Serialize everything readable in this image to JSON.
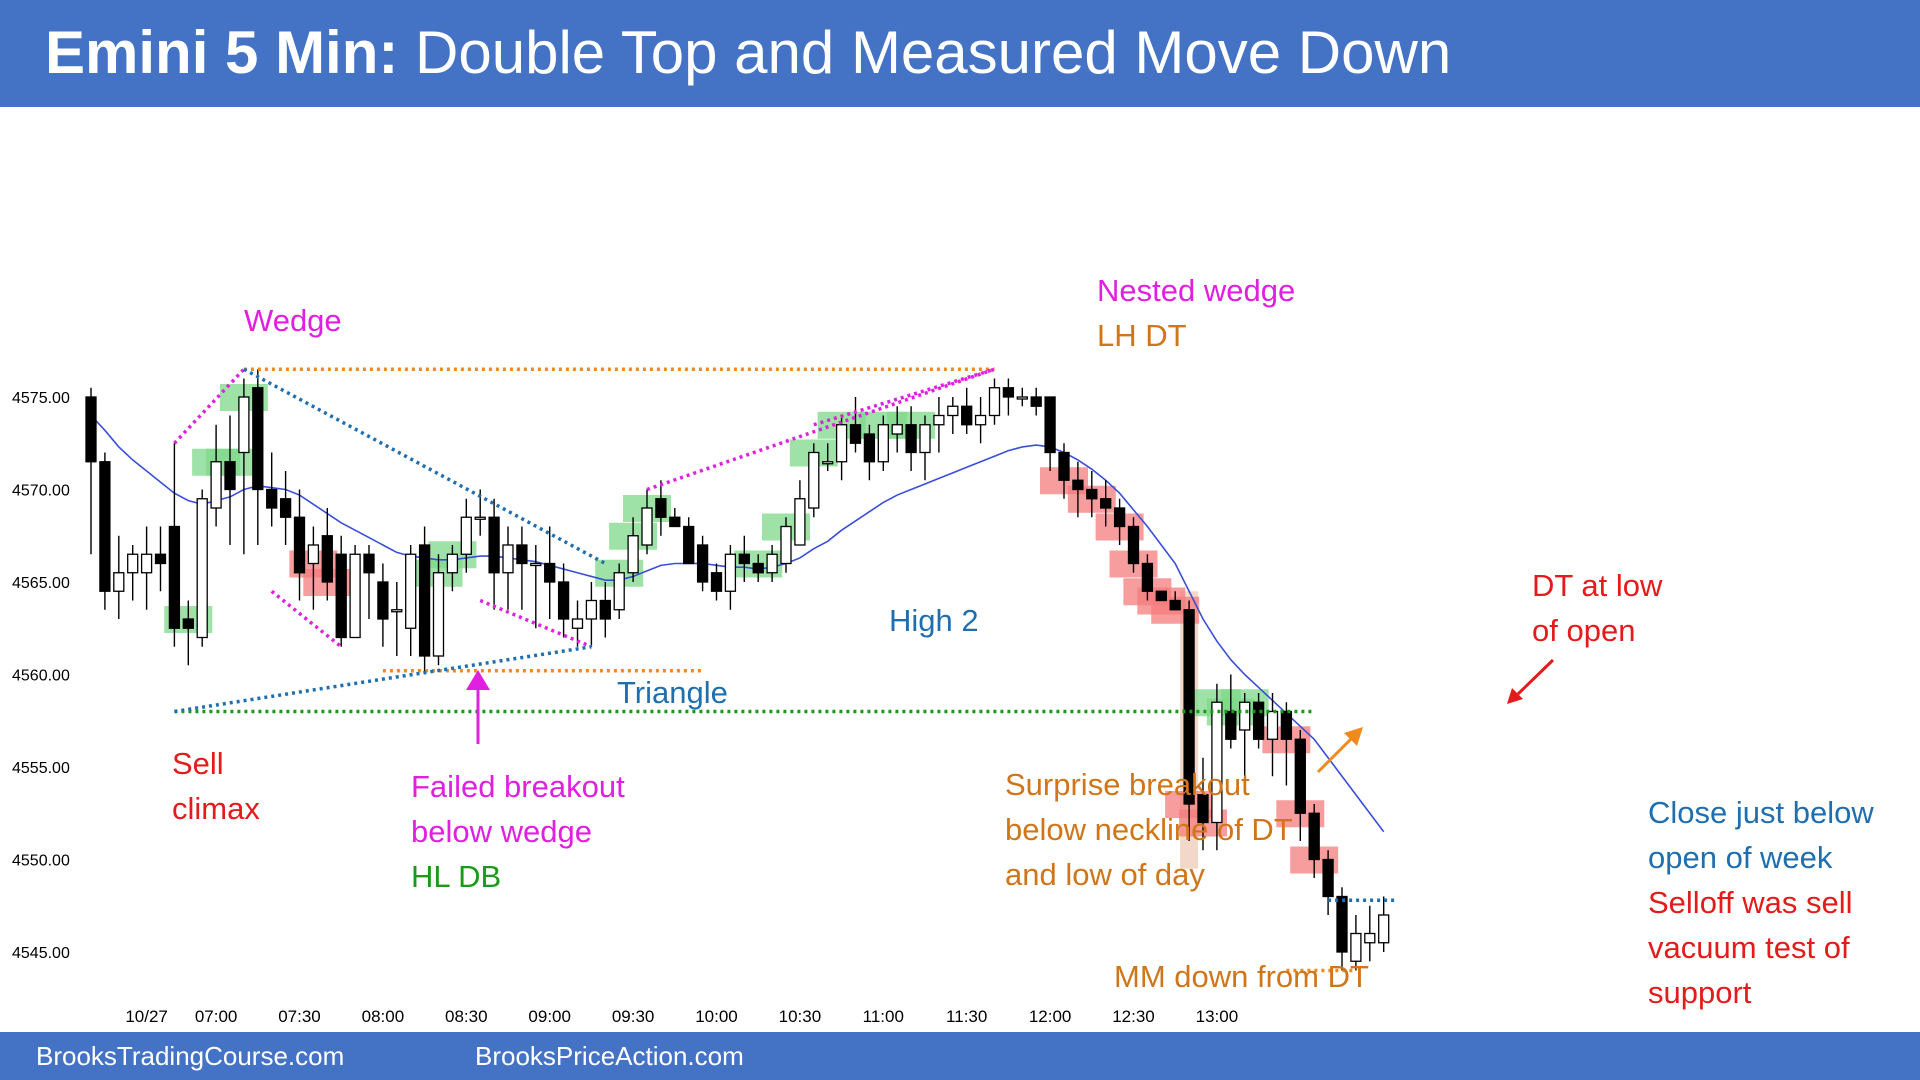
{
  "header": {
    "title_bold": "Emini 5 Min:",
    "title_rest": " Double Top and Measured Move Down",
    "bg_color": "#4472C4"
  },
  "footer": {
    "left": "BrooksTradingCourse.com",
    "right": "BrooksPriceAction.com"
  },
  "colors": {
    "bull_highlight": "#7FD88A",
    "bear_highlight": "#F47C7C",
    "ema": "#3A4FD8",
    "magenta": "#E020E0",
    "orange": "#F08A1E",
    "blue_dot": "#1F6FB0",
    "green_dot": "#1A9A1A"
  },
  "chart_data": {
    "type": "candlestick",
    "title": "Emini 5 Min: Double Top and Measured Move Down",
    "ylim": [
      4542,
      4582
    ],
    "yticks": [
      "4575.00",
      "4570.00",
      "4565.00",
      "4560.00",
      "4555.00",
      "4550.00",
      "4545.00"
    ],
    "ytick_values": [
      4575,
      4570,
      4565,
      4560,
      4555,
      4550,
      4545
    ],
    "xticks": [
      "10/27",
      "07:00",
      "07:30",
      "08:00",
      "08:30",
      "09:00",
      "09:30",
      "10:00",
      "10:30",
      "11:00",
      "11:30",
      "12:00",
      "12:30",
      "13:00"
    ],
    "xtick_bars": [
      4,
      9,
      15,
      21,
      27,
      33,
      39,
      45,
      51,
      57,
      63,
      69,
      75,
      81
    ],
    "bars": [
      {
        "o": 4575.0,
        "h": 4575.5,
        "l": 4566.5,
        "c": 4571.5
      },
      {
        "o": 4571.5,
        "h": 4572.0,
        "l": 4563.5,
        "c": 4564.5
      },
      {
        "o": 4564.5,
        "h": 4567.5,
        "l": 4563.0,
        "c": 4565.5
      },
      {
        "o": 4565.5,
        "h": 4567.0,
        "l": 4564.0,
        "c": 4566.5
      },
      {
        "o": 4565.5,
        "h": 4568.0,
        "l": 4563.5,
        "c": 4566.5
      },
      {
        "o": 4566.5,
        "h": 4568.0,
        "l": 4564.5,
        "c": 4566.0
      },
      {
        "o": 4568.0,
        "h": 4572.5,
        "l": 4561.5,
        "c": 4562.5
      },
      {
        "o": 4563.0,
        "h": 4564.0,
        "l": 4560.5,
        "c": 4562.5
      },
      {
        "o": 4562.0,
        "h": 4570.0,
        "l": 4561.5,
        "c": 4569.5
      },
      {
        "o": 4569.0,
        "h": 4573.5,
        "l": 4568.0,
        "c": 4571.5
      },
      {
        "o": 4571.5,
        "h": 4574.0,
        "l": 4567.0,
        "c": 4570.0
      },
      {
        "o": 4572.0,
        "h": 4576.0,
        "l": 4566.5,
        "c": 4575.0
      },
      {
        "o": 4575.5,
        "h": 4576.5,
        "l": 4567.0,
        "c": 4570.0
      },
      {
        "o": 4570.0,
        "h": 4572.0,
        "l": 4568.0,
        "c": 4569.0
      },
      {
        "o": 4569.5,
        "h": 4571.0,
        "l": 4567.0,
        "c": 4568.5
      },
      {
        "o": 4568.5,
        "h": 4570.0,
        "l": 4564.0,
        "c": 4565.5
      },
      {
        "o": 4566.0,
        "h": 4568.0,
        "l": 4563.5,
        "c": 4567.0
      },
      {
        "o": 4567.5,
        "h": 4569.0,
        "l": 4564.0,
        "c": 4565.0
      },
      {
        "o": 4566.5,
        "h": 4567.5,
        "l": 4561.5,
        "c": 4562.0
      },
      {
        "o": 4562.0,
        "h": 4567.0,
        "l": 4562.0,
        "c": 4566.5
      },
      {
        "o": 4566.5,
        "h": 4567.0,
        "l": 4563.0,
        "c": 4565.5
      },
      {
        "o": 4565.0,
        "h": 4566.0,
        "l": 4561.5,
        "c": 4563.0
      },
      {
        "o": 4563.5,
        "h": 4565.0,
        "l": 4561.0,
        "c": 4563.5
      },
      {
        "o": 4562.5,
        "h": 4567.0,
        "l": 4561.0,
        "c": 4566.5
      },
      {
        "o": 4567.0,
        "h": 4568.0,
        "l": 4560.0,
        "c": 4561.0
      },
      {
        "o": 4561.0,
        "h": 4566.5,
        "l": 4560.5,
        "c": 4565.5
      },
      {
        "o": 4565.5,
        "h": 4567.0,
        "l": 4564.5,
        "c": 4566.5
      },
      {
        "o": 4566.5,
        "h": 4569.5,
        "l": 4565.5,
        "c": 4568.5
      },
      {
        "o": 4568.5,
        "h": 4570.0,
        "l": 4567.5,
        "c": 4568.5
      },
      {
        "o": 4568.5,
        "h": 4569.5,
        "l": 4563.5,
        "c": 4565.5
      },
      {
        "o": 4565.5,
        "h": 4568.0,
        "l": 4563.5,
        "c": 4567.0
      },
      {
        "o": 4567.0,
        "h": 4568.0,
        "l": 4563.5,
        "c": 4566.0
      },
      {
        "o": 4566.0,
        "h": 4567.0,
        "l": 4562.5,
        "c": 4566.0
      },
      {
        "o": 4566.0,
        "h": 4568.0,
        "l": 4563.0,
        "c": 4565.0
      },
      {
        "o": 4565.0,
        "h": 4566.0,
        "l": 4562.0,
        "c": 4563.0
      },
      {
        "o": 4562.5,
        "h": 4564.0,
        "l": 4561.5,
        "c": 4563.0
      },
      {
        "o": 4563.0,
        "h": 4565.0,
        "l": 4561.5,
        "c": 4564.0
      },
      {
        "o": 4564.0,
        "h": 4565.0,
        "l": 4562.0,
        "c": 4563.0
      },
      {
        "o": 4563.5,
        "h": 4566.0,
        "l": 4563.0,
        "c": 4565.5
      },
      {
        "o": 4565.5,
        "h": 4568.5,
        "l": 4565.0,
        "c": 4567.5
      },
      {
        "o": 4567.0,
        "h": 4570.0,
        "l": 4566.5,
        "c": 4569.0
      },
      {
        "o": 4569.5,
        "h": 4570.5,
        "l": 4567.5,
        "c": 4568.5
      },
      {
        "o": 4568.5,
        "h": 4569.0,
        "l": 4568.0,
        "c": 4568.0
      },
      {
        "o": 4568.0,
        "h": 4568.5,
        "l": 4566.0,
        "c": 4566.0
      },
      {
        "o": 4567.0,
        "h": 4567.5,
        "l": 4564.5,
        "c": 4565.0
      },
      {
        "o": 4565.5,
        "h": 4566.0,
        "l": 4564.0,
        "c": 4564.5
      },
      {
        "o": 4564.5,
        "h": 4567.0,
        "l": 4563.5,
        "c": 4566.5
      },
      {
        "o": 4566.5,
        "h": 4567.5,
        "l": 4565.0,
        "c": 4566.0
      },
      {
        "o": 4566.0,
        "h": 4566.5,
        "l": 4565.0,
        "c": 4565.5
      },
      {
        "o": 4565.5,
        "h": 4567.0,
        "l": 4565.0,
        "c": 4566.5
      },
      {
        "o": 4566.0,
        "h": 4568.5,
        "l": 4565.5,
        "c": 4568.0
      },
      {
        "o": 4567.0,
        "h": 4570.5,
        "l": 4567.0,
        "c": 4569.5
      },
      {
        "o": 4569.0,
        "h": 4572.5,
        "l": 4568.5,
        "c": 4572.0
      },
      {
        "o": 4571.5,
        "h": 4572.5,
        "l": 4571.0,
        "c": 4571.5
      },
      {
        "o": 4571.5,
        "h": 4574.0,
        "l": 4570.5,
        "c": 4573.5
      },
      {
        "o": 4573.5,
        "h": 4575.0,
        "l": 4572.0,
        "c": 4572.5
      },
      {
        "o": 4573.0,
        "h": 4573.5,
        "l": 4570.5,
        "c": 4571.5
      },
      {
        "o": 4571.5,
        "h": 4574.0,
        "l": 4571.0,
        "c": 4573.5
      },
      {
        "o": 4573.0,
        "h": 4574.5,
        "l": 4572.0,
        "c": 4573.5
      },
      {
        "o": 4573.5,
        "h": 4574.5,
        "l": 4571.0,
        "c": 4572.0
      },
      {
        "o": 4572.0,
        "h": 4574.0,
        "l": 4570.5,
        "c": 4573.5
      },
      {
        "o": 4573.5,
        "h": 4575.0,
        "l": 4572.0,
        "c": 4574.0
      },
      {
        "o": 4574.0,
        "h": 4575.0,
        "l": 4573.0,
        "c": 4574.5
      },
      {
        "o": 4574.5,
        "h": 4575.5,
        "l": 4573.0,
        "c": 4573.5
      },
      {
        "o": 4573.5,
        "h": 4575.0,
        "l": 4572.5,
        "c": 4574.0
      },
      {
        "o": 4574.0,
        "h": 4576.0,
        "l": 4573.5,
        "c": 4575.5
      },
      {
        "o": 4575.5,
        "h": 4576.0,
        "l": 4574.0,
        "c": 4575.0
      },
      {
        "o": 4575.0,
        "h": 4575.5,
        "l": 4574.5,
        "c": 4575.0
      },
      {
        "o": 4575.0,
        "h": 4575.5,
        "l": 4574.0,
        "c": 4574.5
      },
      {
        "o": 4575.0,
        "h": 4575.0,
        "l": 4571.0,
        "c": 4572.0
      },
      {
        "o": 4572.0,
        "h": 4572.5,
        "l": 4569.5,
        "c": 4570.5
      },
      {
        "o": 4570.5,
        "h": 4571.5,
        "l": 4568.5,
        "c": 4570.0
      },
      {
        "o": 4570.0,
        "h": 4571.0,
        "l": 4568.5,
        "c": 4569.5
      },
      {
        "o": 4569.5,
        "h": 4570.5,
        "l": 4568.0,
        "c": 4569.0
      },
      {
        "o": 4569.0,
        "h": 4569.5,
        "l": 4567.0,
        "c": 4568.0
      },
      {
        "o": 4568.0,
        "h": 4568.5,
        "l": 4565.5,
        "c": 4566.0
      },
      {
        "o": 4566.0,
        "h": 4566.5,
        "l": 4564.0,
        "c": 4564.5
      },
      {
        "o": 4564.5,
        "h": 4564.5,
        "l": 4564.0,
        "c": 4564.0
      },
      {
        "o": 4564.0,
        "h": 4564.5,
        "l": 4563.5,
        "c": 4563.5
      },
      {
        "o": 4563.5,
        "h": 4564.0,
        "l": 4551.0,
        "c": 4553.0
      },
      {
        "o": 4553.5,
        "h": 4555.5,
        "l": 4550.5,
        "c": 4552.0
      },
      {
        "o": 4552.0,
        "h": 4559.5,
        "l": 4550.5,
        "c": 4558.5
      },
      {
        "o": 4558.0,
        "h": 4560.0,
        "l": 4556.0,
        "c": 4556.5
      },
      {
        "o": 4557.0,
        "h": 4559.0,
        "l": 4554.5,
        "c": 4558.5
      },
      {
        "o": 4558.5,
        "h": 4559.0,
        "l": 4556.0,
        "c": 4556.5
      },
      {
        "o": 4556.5,
        "h": 4559.0,
        "l": 4554.5,
        "c": 4558.0
      },
      {
        "o": 4558.0,
        "h": 4558.5,
        "l": 4554.0,
        "c": 4556.5
      },
      {
        "o": 4556.5,
        "h": 4557.0,
        "l": 4551.0,
        "c": 4552.5
      },
      {
        "o": 4552.5,
        "h": 4553.0,
        "l": 4549.0,
        "c": 4550.0
      },
      {
        "o": 4550.0,
        "h": 4550.5,
        "l": 4547.0,
        "c": 4548.0
      },
      {
        "o": 4548.0,
        "h": 4548.5,
        "l": 4544.0,
        "c": 4545.0
      },
      {
        "o": 4544.5,
        "h": 4547.0,
        "l": 4544.0,
        "c": 4546.0
      },
      {
        "o": 4545.5,
        "h": 4547.5,
        "l": 4544.5,
        "c": 4546.0
      },
      {
        "o": 4545.5,
        "h": 4548.0,
        "l": 4545.0,
        "c": 4547.0
      }
    ],
    "ema": [
      4574.0,
      4573.2,
      4572.3,
      4571.6,
      4571.0,
      4570.4,
      4569.8,
      4569.4,
      4569.2,
      4569.4,
      4569.6,
      4570.0,
      4570.2,
      4570.1,
      4570.0,
      4569.7,
      4569.2,
      4568.7,
      4568.2,
      4567.8,
      4567.4,
      4567.0,
      4566.6,
      4566.4,
      4566.3,
      4566.2,
      4566.2,
      4566.3,
      4566.4,
      4566.4,
      4566.3,
      4566.2,
      4566.1,
      4565.9,
      4565.7,
      4565.5,
      4565.3,
      4565.1,
      4565.1,
      4565.3,
      4565.6,
      4565.9,
      4566.0,
      4566.0,
      4566.0,
      4565.9,
      4565.8,
      4565.8,
      4565.7,
      4565.8,
      4566.0,
      4566.3,
      4566.8,
      4567.2,
      4567.8,
      4568.3,
      4568.8,
      4569.3,
      4569.7,
      4570.0,
      4570.3,
      4570.6,
      4570.9,
      4571.2,
      4571.5,
      4571.8,
      4572.1,
      4572.3,
      4572.4,
      4572.3,
      4572.0,
      4571.6,
      4571.1,
      4570.5,
      4569.8,
      4568.9,
      4568.0,
      4567.0,
      4566.0,
      4564.5,
      4563.0,
      4561.8,
      4560.8,
      4560.0,
      4559.3,
      4558.6,
      4557.9,
      4557.2,
      4556.5,
      4555.5,
      4554.5,
      4553.5,
      4552.5,
      4551.5
    ],
    "bull_highlights": [
      7,
      9,
      10,
      11,
      25,
      26,
      38,
      39,
      40,
      48,
      50,
      52,
      54,
      57,
      59,
      81,
      82,
      83
    ],
    "bear_highlights": [
      16,
      17,
      70,
      72,
      74,
      75,
      76,
      77,
      78,
      79,
      80,
      86,
      87,
      88
    ],
    "lines": [
      {
        "style": "orange",
        "from": [
          11,
          4576.5
        ],
        "to": [
          65,
          4576.5
        ]
      },
      {
        "style": "orange",
        "from": [
          21,
          4560.2
        ],
        "to": [
          44,
          4560.2
        ]
      },
      {
        "style": "green",
        "from": [
          6,
          4558.0
        ],
        "to": [
          88,
          4558.0
        ]
      },
      {
        "style": "orange",
        "from": [
          86,
          4544.0
        ],
        "to": [
          91,
          4544.0
        ]
      },
      {
        "style": "blue",
        "from": [
          89,
          4547.8
        ],
        "to": [
          94,
          4547.8
        ]
      },
      {
        "style": "magenta",
        "from": [
          6,
          4572.5
        ],
        "to": [
          11,
          4576.5
        ]
      },
      {
        "style": "magenta",
        "from": [
          13,
          4564.5
        ],
        "to": [
          18,
          4561.5
        ]
      },
      {
        "style": "magenta",
        "from": [
          28,
          4564.0
        ],
        "to": [
          36,
          4561.5
        ]
      },
      {
        "style": "magenta",
        "from": [
          40,
          4570.0
        ],
        "to": [
          65,
          4576.5
        ]
      },
      {
        "style": "magenta",
        "from": [
          52,
          4573.5
        ],
        "to": [
          65,
          4576.5
        ]
      },
      {
        "style": "blue",
        "from": [
          11,
          4576.5
        ],
        "to": [
          37,
          4566.0
        ]
      },
      {
        "style": "blue",
        "from": [
          6,
          4558.0
        ],
        "to": [
          36,
          4561.5
        ]
      }
    ],
    "annotations": [
      {
        "id": "wedge",
        "text": "Wedge",
        "color": "#E020E0"
      },
      {
        "id": "nested",
        "text": "Nested wedge",
        "color": "#E020E0"
      },
      {
        "id": "lhdt",
        "text": "LH DT",
        "color": "#D0761A"
      },
      {
        "id": "high2",
        "text": "High 2",
        "color": "#1F6FB0"
      },
      {
        "id": "triangle",
        "text": "Triangle",
        "color": "#1F6FB0"
      },
      {
        "id": "sell1",
        "text": "Sell",
        "color": "#E41B1B"
      },
      {
        "id": "sell2",
        "text": "climax",
        "color": "#E41B1B"
      },
      {
        "id": "fb1",
        "text": "Failed breakout",
        "color": "#E020E0"
      },
      {
        "id": "fb2",
        "text": "below wedge",
        "color": "#E020E0"
      },
      {
        "id": "hldb",
        "text": "HL DB",
        "color": "#1A9A1A"
      },
      {
        "id": "dt1",
        "text": "DT at low",
        "color": "#E41B1B"
      },
      {
        "id": "dt2",
        "text": "of open",
        "color": "#E41B1B"
      },
      {
        "id": "sb1",
        "text": "Surprise breakout",
        "color": "#D0761A"
      },
      {
        "id": "sb2",
        "text": "below neckline of DT",
        "color": "#D0761A"
      },
      {
        "id": "sb3",
        "text": "and low of day",
        "color": "#D0761A"
      },
      {
        "id": "close1",
        "text": "Close just below",
        "color": "#1F6FB0"
      },
      {
        "id": "close2",
        "text": "open of week",
        "color": "#1F6FB0"
      },
      {
        "id": "sv1",
        "text": "Selloff was sell",
        "color": "#E41B1B"
      },
      {
        "id": "sv2",
        "text": "vacuum test of",
        "color": "#E41B1B"
      },
      {
        "id": "sv3",
        "text": "support",
        "color": "#E41B1B"
      },
      {
        "id": "mm",
        "text": "MM down from DT",
        "color": "#D0761A"
      }
    ]
  }
}
